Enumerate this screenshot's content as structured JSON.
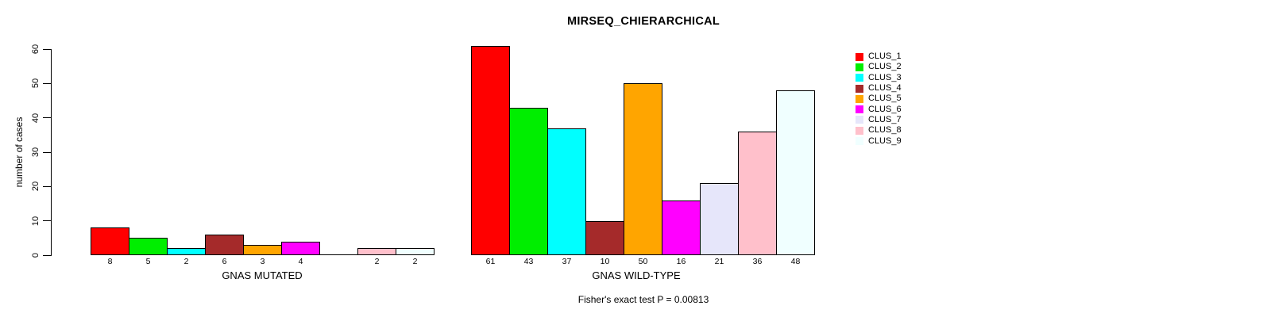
{
  "chart_data": {
    "type": "bar",
    "title": "MIRSEQ_CHIERARCHICAL",
    "ylabel": "number of cases",
    "ylim": [
      0,
      60
    ],
    "yticks": [
      0,
      10,
      20,
      30,
      40,
      50,
      60
    ],
    "grid": false,
    "legend_position": "right-outside",
    "background_color": "#FFFFFF",
    "bar_border_color": "#000000",
    "clusters": [
      {
        "name": "CLUS_1",
        "color": "#FF0000"
      },
      {
        "name": "CLUS_2",
        "color": "#00EE00"
      },
      {
        "name": "CLUS_3",
        "color": "#00FFFF"
      },
      {
        "name": "CLUS_4",
        "color": "#A52A2A"
      },
      {
        "name": "CLUS_5",
        "color": "#FFA500"
      },
      {
        "name": "CLUS_6",
        "color": "#FF00FF"
      },
      {
        "name": "CLUS_7",
        "color": "#E6E6FA"
      },
      {
        "name": "CLUS_8",
        "color": "#FFC0CB"
      },
      {
        "name": "CLUS_9",
        "color": "#F0FFFF"
      }
    ],
    "groups": [
      {
        "label": "GNAS MUTATED",
        "values": [
          8,
          5,
          2,
          6,
          3,
          4,
          0,
          2,
          2
        ]
      },
      {
        "label": "GNAS WILD-TYPE",
        "values": [
          61,
          43,
          37,
          10,
          50,
          16,
          21,
          36,
          48
        ]
      }
    ],
    "value_labels_shown_for_zero": false,
    "footnote": "Fisher's exact test P = 0.00813"
  }
}
